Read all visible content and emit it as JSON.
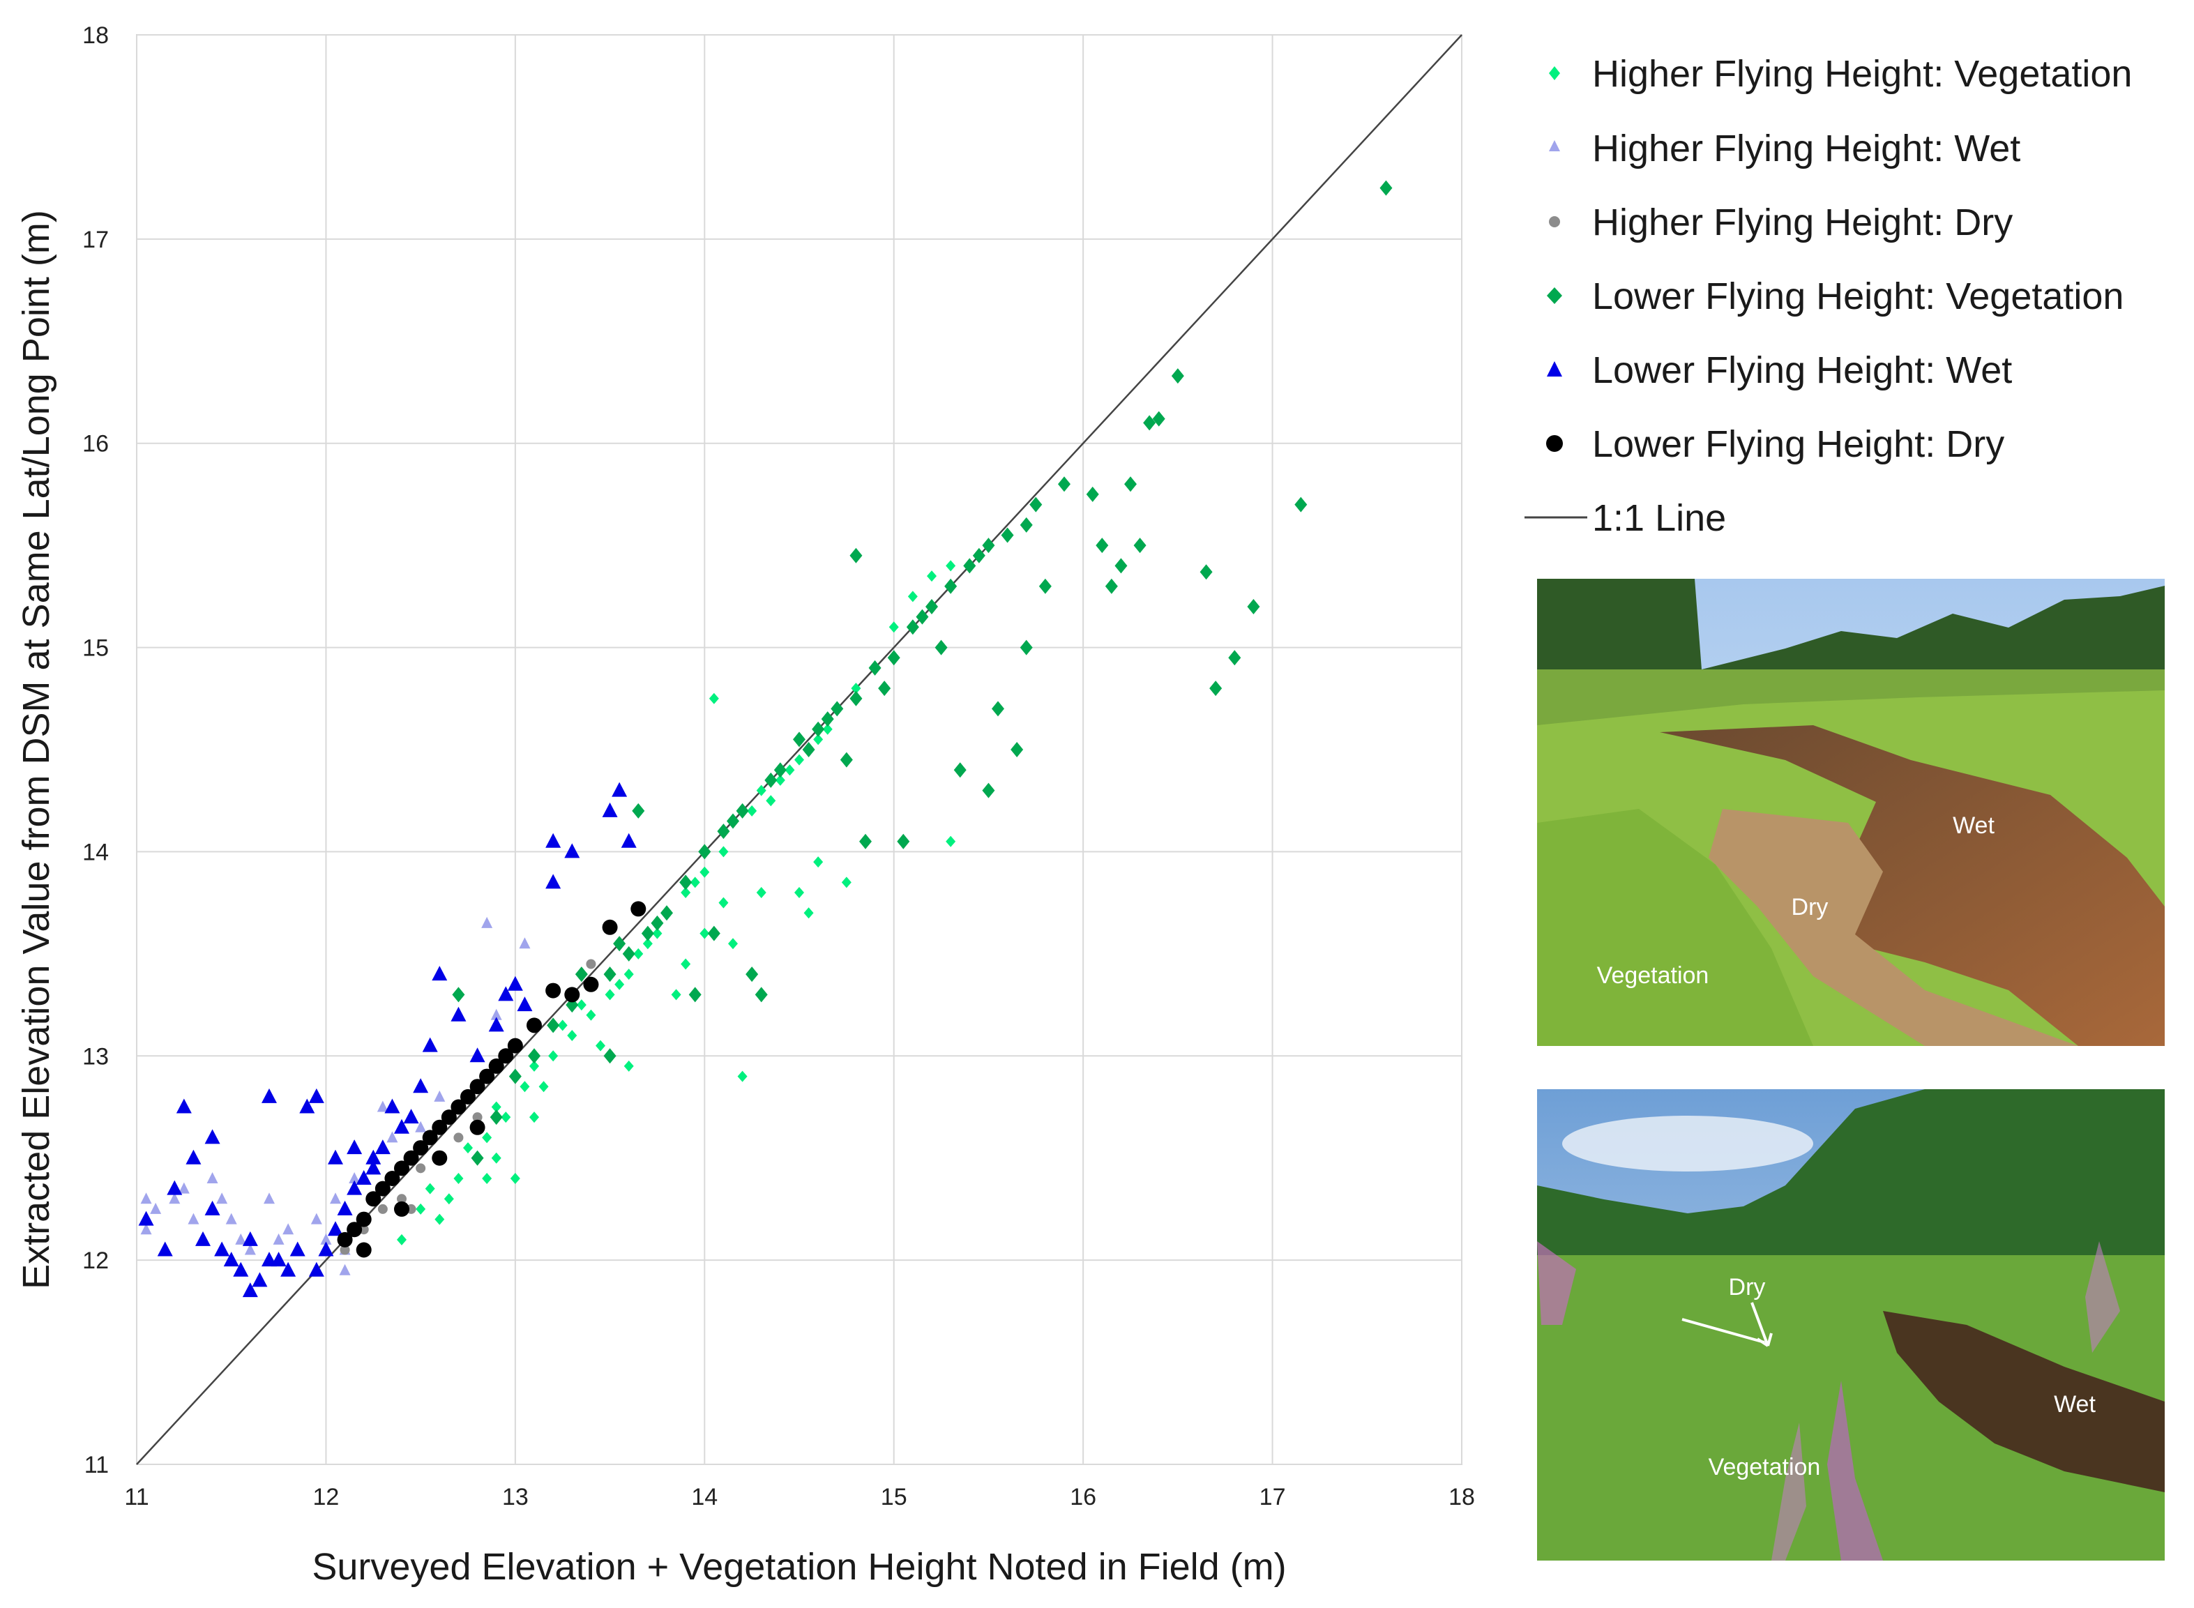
{
  "chart_data": {
    "type": "scatter",
    "title": "",
    "xlabel": "Surveyed Elevation + Vegetation Height Noted in Field (m)",
    "ylabel": "Extracted Elevation Value from DSM at Same Lat/Long Point (m)",
    "xlim": [
      11,
      18
    ],
    "ylim": [
      11,
      18
    ],
    "xticks": [
      "11",
      "12",
      "13",
      "14",
      "15",
      "16",
      "17",
      "18"
    ],
    "yticks": [
      "11",
      "12",
      "13",
      "14",
      "15",
      "16",
      "17",
      "18"
    ],
    "grid": true,
    "legend_position": "right",
    "series": [
      {
        "name": "Higher Flying Height: Vegetation",
        "marker": "diamond-small",
        "color": "#00f07e",
        "points": [
          [
            12.4,
            12.1
          ],
          [
            12.6,
            12.2
          ],
          [
            12.7,
            12.4
          ],
          [
            12.8,
            12.5
          ],
          [
            12.9,
            12.5
          ],
          [
            12.95,
            12.7
          ],
          [
            13.0,
            12.4
          ],
          [
            13.05,
            12.85
          ],
          [
            13.1,
            12.95
          ],
          [
            13.2,
            13.0
          ],
          [
            13.3,
            13.1
          ],
          [
            13.4,
            13.2
          ],
          [
            13.45,
            13.05
          ],
          [
            13.5,
            13.3
          ],
          [
            13.6,
            13.4
          ],
          [
            13.6,
            12.95
          ],
          [
            13.7,
            13.55
          ],
          [
            13.8,
            13.7
          ],
          [
            13.85,
            13.3
          ],
          [
            13.9,
            13.8
          ],
          [
            14.0,
            13.9
          ],
          [
            14.0,
            13.6
          ],
          [
            14.05,
            14.75
          ],
          [
            14.1,
            14.0
          ],
          [
            14.15,
            13.55
          ],
          [
            14.2,
            12.9
          ],
          [
            14.25,
            14.2
          ],
          [
            14.3,
            14.3
          ],
          [
            14.4,
            14.35
          ],
          [
            14.5,
            14.45
          ],
          [
            14.5,
            13.8
          ],
          [
            14.6,
            13.95
          ],
          [
            14.6,
            14.55
          ],
          [
            14.7,
            14.7
          ],
          [
            14.75,
            13.85
          ],
          [
            14.8,
            14.8
          ],
          [
            14.9,
            14.9
          ],
          [
            15.0,
            14.95
          ],
          [
            15.0,
            15.1
          ],
          [
            15.1,
            15.25
          ],
          [
            15.2,
            15.35
          ],
          [
            15.3,
            14.05
          ],
          [
            15.3,
            15.4
          ],
          [
            12.55,
            12.35
          ],
          [
            12.65,
            12.3
          ],
          [
            12.75,
            12.55
          ],
          [
            12.85,
            12.6
          ],
          [
            12.9,
            12.75
          ],
          [
            13.15,
            12.85
          ],
          [
            13.25,
            13.15
          ],
          [
            13.35,
            13.25
          ],
          [
            13.55,
            13.35
          ],
          [
            13.65,
            13.5
          ],
          [
            13.75,
            13.6
          ],
          [
            13.95,
            13.85
          ],
          [
            14.35,
            14.25
          ],
          [
            14.45,
            14.4
          ],
          [
            14.55,
            13.7
          ],
          [
            14.65,
            14.6
          ],
          [
            13.9,
            13.45
          ],
          [
            14.1,
            13.75
          ],
          [
            14.3,
            13.8
          ],
          [
            12.5,
            12.25
          ],
          [
            12.85,
            12.4
          ],
          [
            13.1,
            12.7
          ]
        ]
      },
      {
        "name": "Higher Flying Height: Wet",
        "marker": "triangle-small",
        "color": "#a0a4ec",
        "points": [
          [
            11.05,
            12.3
          ],
          [
            11.05,
            12.15
          ],
          [
            11.1,
            12.25
          ],
          [
            11.2,
            12.3
          ],
          [
            11.25,
            12.35
          ],
          [
            11.3,
            12.2
          ],
          [
            11.4,
            12.4
          ],
          [
            11.45,
            12.3
          ],
          [
            11.5,
            12.2
          ],
          [
            11.55,
            12.1
          ],
          [
            11.6,
            12.05
          ],
          [
            11.7,
            12.3
          ],
          [
            11.75,
            12.1
          ],
          [
            11.8,
            12.15
          ],
          [
            11.85,
            12.05
          ],
          [
            11.95,
            12.2
          ],
          [
            12.0,
            12.1
          ],
          [
            12.05,
            12.3
          ],
          [
            12.1,
            12.05
          ],
          [
            12.1,
            11.95
          ],
          [
            12.15,
            12.4
          ],
          [
            12.25,
            12.5
          ],
          [
            12.3,
            12.75
          ],
          [
            12.35,
            12.6
          ],
          [
            12.5,
            12.65
          ],
          [
            12.6,
            12.8
          ],
          [
            12.85,
            13.65
          ],
          [
            13.05,
            13.55
          ],
          [
            12.9,
            13.2
          ]
        ]
      },
      {
        "name": "Higher Flying Height: Dry",
        "marker": "circle-small",
        "color": "#8c8c8c",
        "points": [
          [
            12.1,
            12.05
          ],
          [
            12.2,
            12.15
          ],
          [
            12.3,
            12.25
          ],
          [
            12.4,
            12.3
          ],
          [
            12.45,
            12.25
          ],
          [
            12.5,
            12.45
          ],
          [
            12.6,
            12.5
          ],
          [
            12.7,
            12.6
          ],
          [
            12.8,
            12.7
          ],
          [
            13.3,
            13.25
          ],
          [
            13.4,
            13.45
          ]
        ]
      },
      {
        "name": "Lower Flying Height: Vegetation",
        "marker": "diamond",
        "color": "#00a84f",
        "points": [
          [
            12.8,
            12.5
          ],
          [
            12.9,
            12.7
          ],
          [
            13.0,
            12.9
          ],
          [
            13.1,
            13.0
          ],
          [
            13.2,
            13.15
          ],
          [
            13.3,
            13.25
          ],
          [
            13.35,
            13.4
          ],
          [
            13.4,
            13.35
          ],
          [
            13.5,
            13.4
          ],
          [
            13.6,
            13.5
          ],
          [
            13.65,
            14.2
          ],
          [
            13.7,
            13.6
          ],
          [
            13.8,
            13.7
          ],
          [
            13.9,
            13.85
          ],
          [
            14.0,
            14.0
          ],
          [
            14.1,
            14.1
          ],
          [
            14.2,
            14.2
          ],
          [
            14.25,
            13.4
          ],
          [
            14.3,
            13.3
          ],
          [
            14.4,
            14.4
          ],
          [
            14.5,
            14.55
          ],
          [
            14.6,
            14.6
          ],
          [
            14.7,
            14.7
          ],
          [
            14.8,
            14.75
          ],
          [
            14.8,
            15.45
          ],
          [
            14.85,
            14.05
          ],
          [
            14.9,
            14.9
          ],
          [
            15.0,
            14.95
          ],
          [
            15.05,
            14.05
          ],
          [
            15.1,
            15.1
          ],
          [
            15.2,
            15.2
          ],
          [
            15.3,
            15.3
          ],
          [
            15.35,
            14.4
          ],
          [
            15.4,
            15.4
          ],
          [
            15.5,
            14.3
          ],
          [
            15.5,
            15.5
          ],
          [
            15.55,
            14.7
          ],
          [
            15.6,
            15.55
          ],
          [
            15.65,
            14.5
          ],
          [
            15.7,
            15.6
          ],
          [
            15.7,
            15.0
          ],
          [
            15.75,
            15.7
          ],
          [
            15.8,
            15.3
          ],
          [
            15.9,
            15.8
          ],
          [
            16.05,
            15.75
          ],
          [
            16.1,
            15.5
          ],
          [
            16.15,
            15.3
          ],
          [
            16.2,
            15.4
          ],
          [
            16.25,
            15.8
          ],
          [
            16.3,
            15.5
          ],
          [
            16.35,
            16.1
          ],
          [
            16.4,
            16.12
          ],
          [
            16.5,
            16.33
          ],
          [
            16.65,
            15.37
          ],
          [
            16.7,
            14.8
          ],
          [
            16.8,
            14.95
          ],
          [
            16.9,
            15.2
          ],
          [
            17.15,
            15.7
          ],
          [
            17.6,
            17.25
          ],
          [
            13.5,
            13.0
          ],
          [
            13.55,
            13.55
          ],
          [
            13.75,
            13.65
          ],
          [
            13.95,
            13.3
          ],
          [
            14.05,
            13.6
          ],
          [
            14.15,
            14.15
          ],
          [
            14.35,
            14.35
          ],
          [
            14.55,
            14.5
          ],
          [
            14.65,
            14.65
          ],
          [
            14.75,
            14.45
          ],
          [
            14.95,
            14.8
          ],
          [
            15.15,
            15.15
          ],
          [
            15.25,
            15.0
          ],
          [
            15.45,
            15.45
          ],
          [
            12.7,
            13.3
          ]
        ]
      },
      {
        "name": "Lower Flying Height: Wet",
        "marker": "triangle",
        "color": "#0000e6",
        "points": [
          [
            11.05,
            12.2
          ],
          [
            11.15,
            12.05
          ],
          [
            11.2,
            12.35
          ],
          [
            11.25,
            12.75
          ],
          [
            11.3,
            12.5
          ],
          [
            11.35,
            12.1
          ],
          [
            11.4,
            12.6
          ],
          [
            11.4,
            12.25
          ],
          [
            11.45,
            12.05
          ],
          [
            11.5,
            12.0
          ],
          [
            11.55,
            11.95
          ],
          [
            11.6,
            12.1
          ],
          [
            11.65,
            11.9
          ],
          [
            11.7,
            12.0
          ],
          [
            11.7,
            12.8
          ],
          [
            11.75,
            12.0
          ],
          [
            11.8,
            11.95
          ],
          [
            11.85,
            12.05
          ],
          [
            11.9,
            12.75
          ],
          [
            11.95,
            12.8
          ],
          [
            12.0,
            12.05
          ],
          [
            12.05,
            12.15
          ],
          [
            12.1,
            12.25
          ],
          [
            12.15,
            12.35
          ],
          [
            12.2,
            12.4
          ],
          [
            12.25,
            12.5
          ],
          [
            12.3,
            12.55
          ],
          [
            12.35,
            12.75
          ],
          [
            12.4,
            12.65
          ],
          [
            12.45,
            12.7
          ],
          [
            12.5,
            12.85
          ],
          [
            12.55,
            13.05
          ],
          [
            12.6,
            13.4
          ],
          [
            12.7,
            13.2
          ],
          [
            12.8,
            13.0
          ],
          [
            12.9,
            13.15
          ],
          [
            12.95,
            13.3
          ],
          [
            13.0,
            13.35
          ],
          [
            13.05,
            13.25
          ],
          [
            13.2,
            14.05
          ],
          [
            13.2,
            13.85
          ],
          [
            13.3,
            14.0
          ],
          [
            13.5,
            14.2
          ],
          [
            13.55,
            14.3
          ],
          [
            13.6,
            14.05
          ],
          [
            12.15,
            12.55
          ],
          [
            12.25,
            12.45
          ],
          [
            12.05,
            12.5
          ],
          [
            11.6,
            11.85
          ],
          [
            11.95,
            11.95
          ]
        ]
      },
      {
        "name": "Lower Flying Height: Dry",
        "marker": "circle",
        "color": "#000000",
        "points": [
          [
            12.1,
            12.1
          ],
          [
            12.15,
            12.15
          ],
          [
            12.2,
            12.2
          ],
          [
            12.25,
            12.3
          ],
          [
            12.3,
            12.35
          ],
          [
            12.35,
            12.4
          ],
          [
            12.4,
            12.45
          ],
          [
            12.45,
            12.5
          ],
          [
            12.5,
            12.55
          ],
          [
            12.55,
            12.6
          ],
          [
            12.6,
            12.65
          ],
          [
            12.65,
            12.7
          ],
          [
            12.7,
            12.75
          ],
          [
            12.75,
            12.8
          ],
          [
            12.8,
            12.85
          ],
          [
            12.85,
            12.9
          ],
          [
            12.9,
            12.95
          ],
          [
            12.95,
            13.0
          ],
          [
            13.0,
            13.05
          ],
          [
            13.1,
            13.15
          ],
          [
            13.2,
            13.32
          ],
          [
            13.3,
            13.3
          ],
          [
            13.4,
            13.35
          ],
          [
            13.5,
            13.63
          ],
          [
            13.65,
            13.72
          ],
          [
            12.2,
            12.05
          ],
          [
            12.4,
            12.25
          ],
          [
            12.6,
            12.5
          ],
          [
            12.8,
            12.65
          ]
        ]
      }
    ],
    "reference_line": {
      "name": "1:1 Line",
      "from": [
        11,
        11
      ],
      "to": [
        18,
        18
      ],
      "color": "#444444"
    }
  },
  "photos": [
    {
      "labels": [
        "Wet",
        "Dry",
        "Vegetation"
      ]
    },
    {
      "labels": [
        "Dry",
        "Wet",
        "Vegetation"
      ]
    }
  ]
}
